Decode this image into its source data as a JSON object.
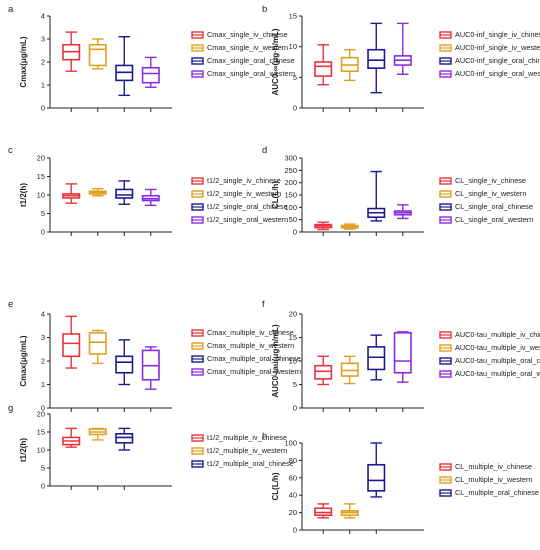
{
  "colors": {
    "iv_chinese": "#e8333c",
    "iv_western": "#e0a020",
    "oral_chinese": "#1a1a8c",
    "oral_western": "#8a2be2",
    "axis": "#222222"
  },
  "chart_data": [
    {
      "panel": "a",
      "type": "box",
      "ylabel": "Cmax(μg/mL)",
      "ylim": [
        0,
        4
      ],
      "yticks": [
        "0",
        "1",
        "2",
        "3",
        "4"
      ],
      "ytick_values": [
        0,
        1,
        2,
        3,
        4
      ],
      "series": [
        {
          "name": "Cmax_single_iv_chinese",
          "color_key": "iv_chinese",
          "min": 1.6,
          "q1": 2.1,
          "median": 2.45,
          "q3": 2.75,
          "max": 3.3
        },
        {
          "name": "Cmax_single_iv_western",
          "color_key": "iv_western",
          "min": 1.7,
          "q1": 1.85,
          "median": 2.55,
          "q3": 2.75,
          "max": 3.0
        },
        {
          "name": "Cmax_single_oral_chinese",
          "color_key": "oral_chinese",
          "min": 0.55,
          "q1": 1.2,
          "median": 1.55,
          "q3": 1.85,
          "max": 3.1
        },
        {
          "name": "Cmax_single_oral_western",
          "color_key": "oral_western",
          "min": 0.9,
          "q1": 1.1,
          "median": 1.5,
          "q3": 1.75,
          "max": 2.2
        }
      ]
    },
    {
      "panel": "b",
      "type": "box",
      "ylabel": "AUC0-∞(μg·h/mL)",
      "ylim": [
        0,
        15
      ],
      "yticks": [
        "0",
        "5",
        "10",
        "15"
      ],
      "ytick_values": [
        0,
        5,
        10,
        15
      ],
      "series": [
        {
          "name": "AUC0-inf_single_iv_chinese",
          "color_key": "iv_chinese",
          "min": 3.8,
          "q1": 5.2,
          "median": 6.8,
          "q3": 7.5,
          "max": 10.3
        },
        {
          "name": "AUC0-inf_single_iv_western",
          "color_key": "iv_western",
          "min": 4.5,
          "q1": 6.0,
          "median": 7.0,
          "q3": 8.2,
          "max": 9.5
        },
        {
          "name": "AUC0-inf_single_oral_chinese",
          "color_key": "oral_chinese",
          "min": 2.5,
          "q1": 6.5,
          "median": 7.8,
          "q3": 9.5,
          "max": 13.8
        },
        {
          "name": "AUC0-inf_single_oral_western",
          "color_key": "oral_western",
          "min": 5.5,
          "q1": 7.0,
          "median": 7.8,
          "q3": 8.5,
          "max": 13.8
        }
      ]
    },
    {
      "panel": "c",
      "type": "box",
      "ylabel": "t1/2(h)",
      "ylim": [
        0,
        20
      ],
      "yticks": [
        "0",
        "5",
        "10",
        "15",
        "20"
      ],
      "ytick_values": [
        0,
        5,
        10,
        15,
        20
      ],
      "series": [
        {
          "name": "t1/2_single_iv_chinese",
          "color_key": "iv_chinese",
          "min": 7.8,
          "q1": 9.2,
          "median": 9.8,
          "q3": 10.3,
          "max": 13.0
        },
        {
          "name": "t1/2_single_iv_western",
          "color_key": "iv_western",
          "min": 9.8,
          "q1": 10.3,
          "median": 10.7,
          "q3": 11.0,
          "max": 11.7
        },
        {
          "name": "t1/2_single_oral_chinese",
          "color_key": "oral_chinese",
          "min": 7.5,
          "q1": 9.2,
          "median": 10.0,
          "q3": 11.5,
          "max": 13.8
        },
        {
          "name": "t1/2_single_oral_western",
          "color_key": "oral_western",
          "min": 7.2,
          "q1": 8.5,
          "median": 9.0,
          "q3": 9.8,
          "max": 11.5
        }
      ]
    },
    {
      "panel": "d",
      "type": "box",
      "ylabel": "CL(L/h)",
      "ylim": [
        0,
        300
      ],
      "yticks": [
        "0",
        "50",
        "100",
        "150",
        "200",
        "250",
        "300"
      ],
      "ytick_values": [
        0,
        50,
        100,
        150,
        200,
        250,
        300
      ],
      "series": [
        {
          "name": "CL_single_iv_chinese",
          "color_key": "iv_chinese",
          "min": 10,
          "q1": 18,
          "median": 25,
          "q3": 30,
          "max": 40
        },
        {
          "name": "CL_single_iv_western",
          "color_key": "iv_western",
          "min": 12,
          "q1": 17,
          "median": 22,
          "q3": 26,
          "max": 32
        },
        {
          "name": "CL_single_oral_chinese",
          "color_key": "oral_chinese",
          "min": 45,
          "q1": 60,
          "median": 78,
          "q3": 95,
          "max": 245
        },
        {
          "name": "CL_single_oral_western",
          "color_key": "oral_western",
          "min": 55,
          "q1": 70,
          "median": 78,
          "q3": 85,
          "max": 110
        }
      ]
    },
    {
      "panel": "e",
      "type": "box",
      "ylabel": "Cmax(μg/mL)",
      "ylim": [
        0,
        4
      ],
      "yticks": [
        "0",
        "1",
        "2",
        "3",
        "4"
      ],
      "ytick_values": [
        0,
        1,
        2,
        3,
        4
      ],
      "series": [
        {
          "name": "Cmax_multiple_iv_chinese",
          "color_key": "iv_chinese",
          "min": 1.7,
          "q1": 2.2,
          "median": 2.75,
          "q3": 3.15,
          "max": 3.9
        },
        {
          "name": "Cmax_multiple_iv_western",
          "color_key": "iv_western",
          "min": 1.9,
          "q1": 2.3,
          "median": 2.8,
          "q3": 3.2,
          "max": 3.3
        },
        {
          "name": "Cmax_multiple_oral_chinese",
          "color_key": "oral_chinese",
          "min": 1.0,
          "q1": 1.5,
          "median": 1.95,
          "q3": 2.2,
          "max": 2.9
        },
        {
          "name": "Cmax_multiple_oral_western",
          "color_key": "oral_western",
          "min": 0.8,
          "q1": 1.2,
          "median": 1.8,
          "q3": 2.45,
          "max": 2.6
        }
      ]
    },
    {
      "panel": "f",
      "type": "box",
      "ylabel": "AUC0-tau(μg·h/mL)",
      "ylim": [
        0,
        20
      ],
      "yticks": [
        "0",
        "5",
        "10",
        "15",
        "20"
      ],
      "ytick_values": [
        0,
        5,
        10,
        15,
        20
      ],
      "series": [
        {
          "name": "AUC0-tau_multiple_iv_chinese",
          "color_key": "iv_chinese",
          "min": 5.0,
          "q1": 6.2,
          "median": 7.8,
          "q3": 9.0,
          "max": 11.0
        },
        {
          "name": "AUC0-tau_multiple_iv_western",
          "color_key": "iv_western",
          "min": 5.2,
          "q1": 6.8,
          "median": 8.0,
          "q3": 9.5,
          "max": 11.0
        },
        {
          "name": "AUC0-tau_multiple_oral_chinese",
          "color_key": "oral_chinese",
          "min": 6.0,
          "q1": 8.2,
          "median": 10.8,
          "q3": 13.0,
          "max": 15.5
        },
        {
          "name": "AUC0-tau_multiple_oral_western",
          "color_key": "oral_western",
          "min": 5.5,
          "q1": 7.5,
          "median": 10.0,
          "q3": 16.0,
          "max": 16.2
        }
      ]
    },
    {
      "panel": "g",
      "type": "box",
      "ylabel": "t1/2(h)",
      "ylim": [
        0,
        20
      ],
      "yticks": [
        "0",
        "5",
        "10",
        "15",
        "20"
      ],
      "ytick_values": [
        0,
        5,
        10,
        15,
        20
      ],
      "series": [
        {
          "name": "t1/2_multiple_iv_chinese",
          "color_key": "iv_chinese",
          "min": 10.8,
          "q1": 11.5,
          "median": 12.5,
          "q3": 13.5,
          "max": 16.0
        },
        {
          "name": "t1/2_multiple_iv_western",
          "color_key": "iv_western",
          "min": 12.8,
          "q1": 14.3,
          "median": 15.0,
          "q3": 15.8,
          "max": 16.0
        },
        {
          "name": "t1/2_multiple_oral_chinese",
          "color_key": "oral_chinese",
          "min": 10.0,
          "q1": 12.0,
          "median": 13.5,
          "q3": 14.5,
          "max": 16.0
        }
      ]
    },
    {
      "panel": "h",
      "type": "box",
      "ylabel": "CL(L/h)",
      "ylim": [
        0,
        100
      ],
      "yticks": [
        "0",
        "20",
        "40",
        "60",
        "80",
        "100"
      ],
      "ytick_values": [
        0,
        20,
        40,
        60,
        80,
        100
      ],
      "series": [
        {
          "name": "CL_multiple_iv_chinese",
          "color_key": "iv_chinese",
          "min": 14,
          "q1": 17,
          "median": 20,
          "q3": 25,
          "max": 30
        },
        {
          "name": "CL_multiple_iv_western",
          "color_key": "iv_western",
          "min": 14,
          "q1": 17,
          "median": 20,
          "q3": 22,
          "max": 30
        },
        {
          "name": "CL_multiple_oral_chinese",
          "color_key": "oral_chinese",
          "min": 38,
          "q1": 45,
          "median": 57,
          "q3": 75,
          "max": 100
        }
      ]
    }
  ]
}
